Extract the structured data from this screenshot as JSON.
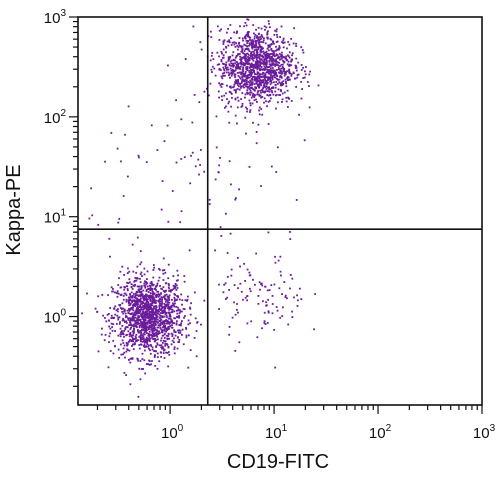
{
  "chart_data": {
    "type": "scatter",
    "title": "",
    "xlabel": "CD19-FITC",
    "ylabel": "Kappa-PE",
    "xscale": "log",
    "yscale": "log",
    "xlim": [
      0.13,
      1000
    ],
    "ylim": [
      0.13,
      1000
    ],
    "grid": false,
    "legend": "none",
    "point_color": "#6a1b9a",
    "x_ticks": [
      {
        "base": "10",
        "exp": "0",
        "value": 1
      },
      {
        "base": "10",
        "exp": "1",
        "value": 10
      },
      {
        "base": "10",
        "exp": "2",
        "value": 100
      },
      {
        "base": "10",
        "exp": "3",
        "value": 1000
      }
    ],
    "y_ticks": [
      {
        "base": "10",
        "exp": "0",
        "value": 1
      },
      {
        "base": "10",
        "exp": "1",
        "value": 10
      },
      {
        "base": "10",
        "exp": "2",
        "value": 100
      },
      {
        "base": "10",
        "exp": "3",
        "value": 1000
      }
    ],
    "quadrant_gates": {
      "x": 2.3,
      "y": 7.5
    },
    "populations": [
      {
        "center": [
          0.62,
          1.0
        ],
        "log_spread": [
          0.17,
          0.2
        ],
        "count": 1400
      },
      {
        "center": [
          6.8,
          320
        ],
        "log_spread": [
          0.18,
          0.19
        ],
        "count": 1250
      },
      {
        "center": [
          7.5,
          1.5
        ],
        "log_spread": [
          0.22,
          0.22
        ],
        "count": 110
      },
      {
        "center": [
          2.2,
          25
        ],
        "log_spread": [
          0.55,
          0.45
        ],
        "count": 90
      }
    ]
  }
}
